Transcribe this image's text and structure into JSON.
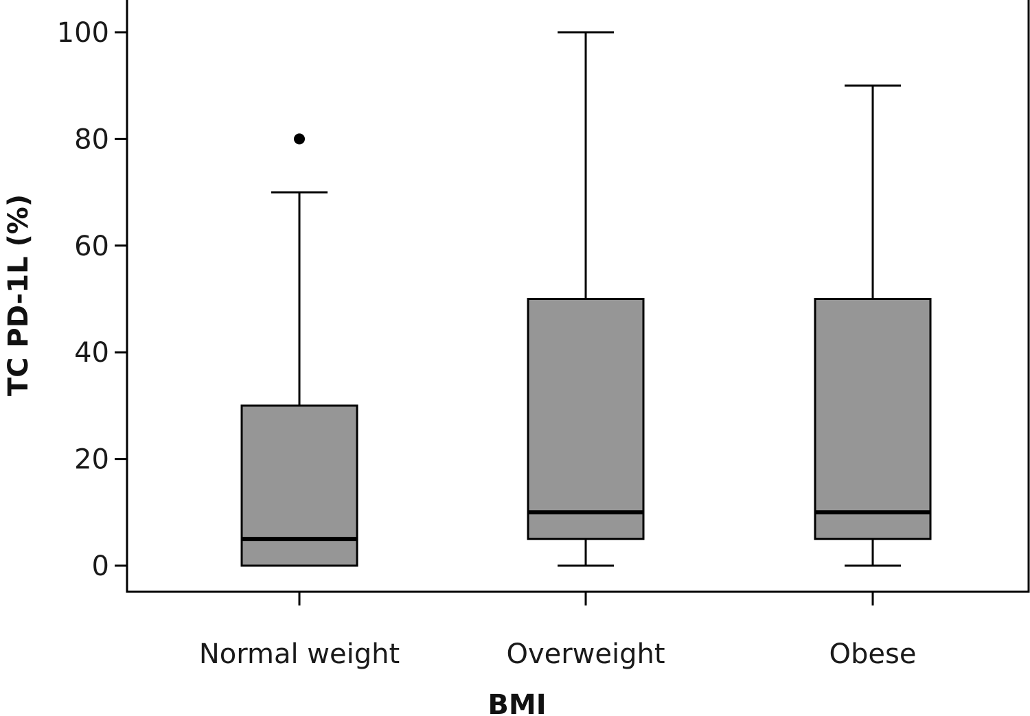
{
  "chart_data": {
    "type": "box",
    "title": "",
    "xlabel": "BMI",
    "ylabel": "TC PD-1L (%)",
    "ylim": [
      -5,
      105
    ],
    "yticks": [
      0,
      20,
      40,
      60,
      80,
      100
    ],
    "categories": [
      "Normal weight",
      "Overweight",
      "Obese"
    ],
    "boxes": [
      {
        "category": "Normal weight",
        "whisker_low": 0,
        "q1": 0,
        "median": 5,
        "q3": 30,
        "whisker_high": 70,
        "outliers": [
          80
        ]
      },
      {
        "category": "Overweight",
        "whisker_low": 0,
        "q1": 5,
        "median": 10,
        "q3": 50,
        "whisker_high": 100,
        "outliers": []
      },
      {
        "category": "Obese",
        "whisker_low": 0,
        "q1": 5,
        "median": 10,
        "q3": 50,
        "whisker_high": 90,
        "outliers": []
      }
    ],
    "grid": false,
    "legend": "none",
    "colors": {
      "box_fill": "#969696",
      "stroke": "#000000"
    }
  }
}
